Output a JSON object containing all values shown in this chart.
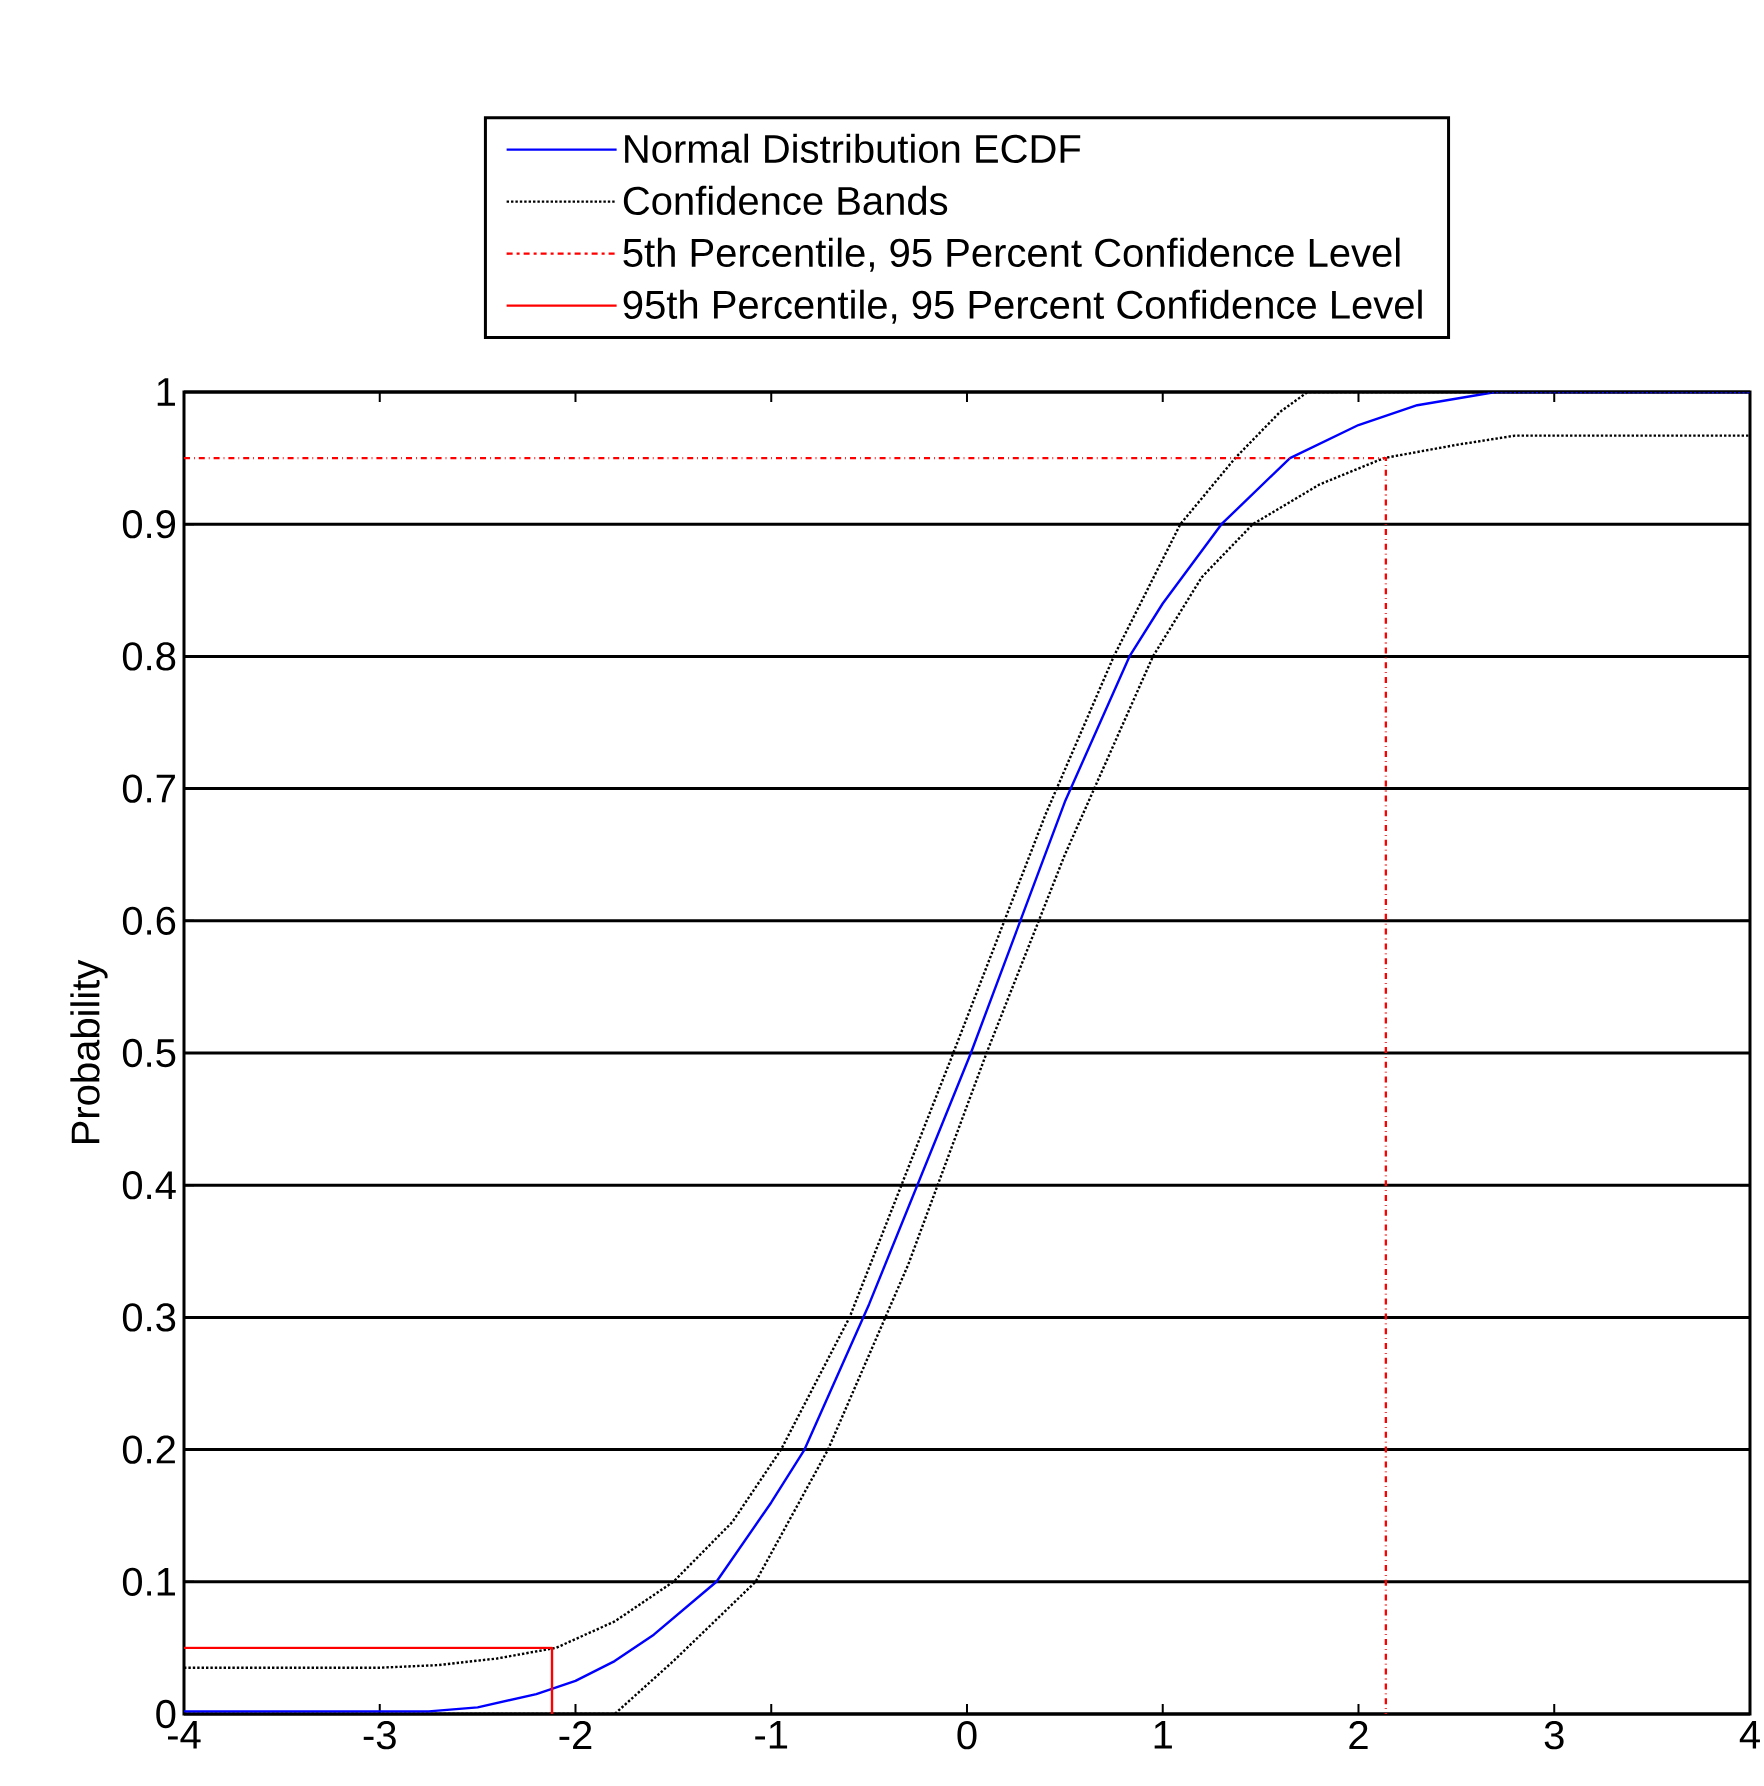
{
  "chart_data": {
    "type": "line",
    "ylabel": "Probability",
    "xlim": [
      -4,
      4
    ],
    "ylim": [
      0,
      1
    ],
    "xticks": [
      -4,
      -3,
      -2,
      -1,
      0,
      1,
      2,
      3,
      4
    ],
    "yticks": [
      0,
      0.1,
      0.2,
      0.3,
      0.4,
      0.5,
      0.6,
      0.7,
      0.8,
      0.9,
      1
    ],
    "grid": "y",
    "legend": "top",
    "marker": "none",
    "series": [
      {
        "name": "Normal Distribution ECDF",
        "color": "#0000ff",
        "line_style": "solid",
        "x": [
          -4,
          -2.75,
          -2.5,
          -2.2,
          -2.0,
          -1.8,
          -1.6,
          -1.28,
          -1.0,
          -0.83,
          -0.5,
          0.02,
          0.5,
          0.83,
          1.0,
          1.3,
          1.65,
          2.0,
          2.3,
          2.7,
          4
        ],
        "values": [
          0.002,
          0.002,
          0.005,
          0.015,
          0.025,
          0.04,
          0.06,
          0.1,
          0.16,
          0.2,
          0.31,
          0.5,
          0.69,
          0.8,
          0.84,
          0.9,
          0.95,
          0.975,
          0.99,
          1,
          1
        ]
      },
      {
        "name": "Confidence Bands",
        "color": "#000000",
        "line_style": "dotted",
        "x": [
          -4,
          -3,
          -2.7,
          -2.4,
          -2.1,
          -1.8,
          -1.5,
          -1.2,
          -0.95,
          -0.6,
          -0.07,
          0.4,
          0.75,
          1.09,
          1.37,
          1.6,
          1.74,
          4
        ],
        "values": [
          0.035,
          0.035,
          0.037,
          0.042,
          0.05,
          0.07,
          0.1,
          0.145,
          0.2,
          0.3,
          0.5,
          0.68,
          0.8,
          0.9,
          0.95,
          0.985,
          1,
          1
        ]
      },
      {
        "color": "#000000",
        "line_style": "dotted",
        "x": [
          -4,
          -1.8,
          -1.5,
          -1.08,
          -0.71,
          -0.3,
          0.1,
          0.5,
          0.95,
          1.2,
          1.46,
          1.8,
          2.13,
          2.5,
          2.8,
          4
        ],
        "values": [
          0,
          0,
          0.04,
          0.1,
          0.2,
          0.34,
          0.5,
          0.65,
          0.8,
          0.86,
          0.9,
          0.93,
          0.95,
          0.96,
          0.967,
          0.967
        ]
      },
      {
        "name": "5th Percentile, 95 Percent Confidence Level",
        "color": "#ff0000",
        "line_style": "dashdot",
        "x": [
          -4,
          2.14,
          2.14
        ],
        "values": [
          0.95,
          0.95,
          0
        ]
      },
      {
        "name": "95th Percentile, 95 Percent Confidence Level",
        "color": "#ff0000",
        "line_style": "solid",
        "x": [
          -4,
          -2.12,
          -2.12
        ],
        "values": [
          0.05,
          0.05,
          0
        ]
      }
    ]
  }
}
